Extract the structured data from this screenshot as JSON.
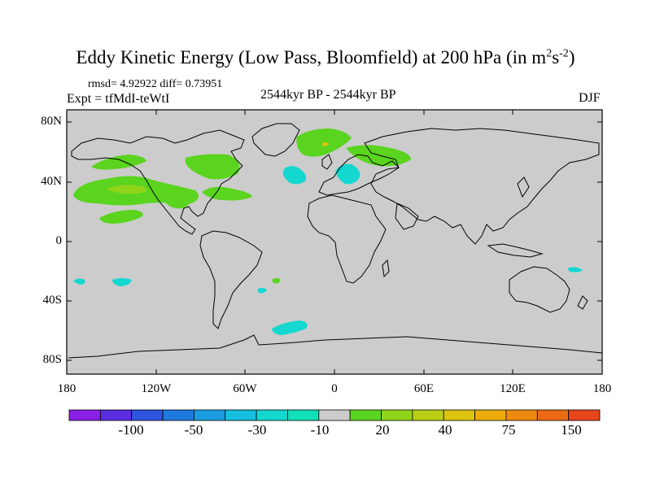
{
  "title": {
    "main": "Eddy Kinetic Energy (Low Pass, Bloomfield) at 200 hPa (in m",
    "sup1": "2",
    "mid": "s",
    "sup2": "-2",
    "end": ")"
  },
  "stats": "rmsd= 4.92922 diff= 0.73951",
  "expt": "Expt = tfMdI-teWtI",
  "period": "2544kyr BP - 2544kyr BP",
  "season": "DJF",
  "lat_labels": [
    "80N",
    "40N",
    "0",
    "40S",
    "80S"
  ],
  "lon_labels": [
    "180",
    "120W",
    "60W",
    "0",
    "60E",
    "120E",
    "180"
  ],
  "colorbar": {
    "labels": [
      "-100",
      "-50",
      "-30",
      "-10",
      "20",
      "40",
      "75",
      "150"
    ],
    "colors": [
      "#8a1fe6",
      "#5a2ee0",
      "#2f55e0",
      "#1f7ae0",
      "#1a9ee0",
      "#16bfe0",
      "#14d8d0",
      "#12e0b8",
      "#cccccc",
      "#5ad41e",
      "#8fd41a",
      "#b8cf16",
      "#dcc310",
      "#ecac0e",
      "#ee8a10",
      "#ec6a14",
      "#e8451a"
    ]
  },
  "colors": {
    "land_background": "#cccccc",
    "positive_low": "#5ad41e",
    "positive_mid": "#8fd41a",
    "positive_high": "#dcc310",
    "negative_low": "#14d8d0",
    "coastline": "#000000"
  }
}
